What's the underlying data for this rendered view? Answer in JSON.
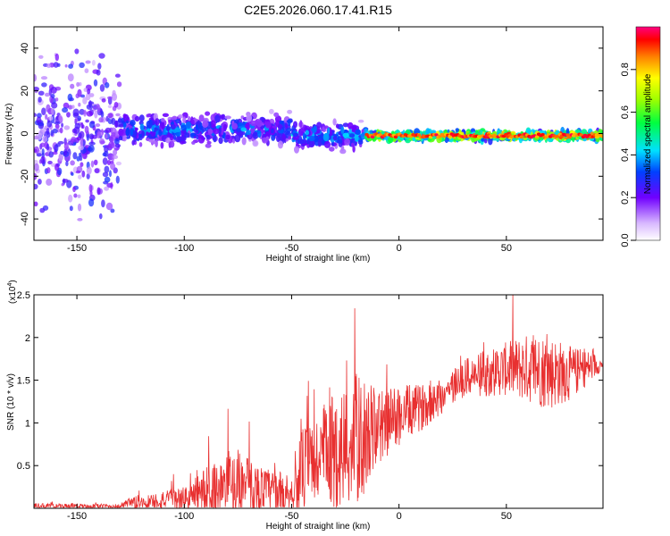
{
  "chart_data": [
    {
      "type": "heatmap",
      "title": "C2E5.2026.060.17.41.R15",
      "xlabel": "Height of straight line (km)",
      "ylabel": "Frequency (Hz)",
      "xlim": [
        -170,
        95
      ],
      "ylim": [
        -50,
        50
      ],
      "xticks": [
        -150,
        -100,
        -50,
        0,
        50
      ],
      "yticks": [
        -40,
        -20,
        0,
        20,
        40
      ],
      "colorbar": {
        "label": "Normalized spectral amplitude",
        "range": [
          0.0,
          1.0
        ],
        "ticks": [
          "0.0",
          "0.2",
          "0.4",
          "0.6",
          "0.8"
        ]
      },
      "segments": [
        {
          "x_start": -170,
          "x_end": -130,
          "center_hz": 0,
          "spread_hz": 48,
          "amplitude": 0.2
        },
        {
          "x_start": -130,
          "x_end": -50,
          "center_hz": 2,
          "spread_hz": 10,
          "amplitude": 0.35
        },
        {
          "x_start": -50,
          "x_end": -15,
          "center_hz": -1,
          "spread_hz": 8,
          "amplitude": 0.4
        },
        {
          "x_start": -15,
          "x_end": 95,
          "center_hz": -1,
          "spread_hz": 3,
          "amplitude": 0.85
        }
      ]
    },
    {
      "type": "line",
      "title": "",
      "xlabel": "Height of straight line (km)",
      "ylabel": "SNR (10 * v/v)",
      "multiplier": "(x10",
      "multiplier_exp": "4",
      "multiplier_close": ")",
      "xlim": [
        -170,
        95
      ],
      "ylim": [
        0,
        2.5
      ],
      "xticks": [
        -150,
        -100,
        -50,
        0,
        50
      ],
      "yticks": [
        0.5,
        1.0,
        1.5,
        2.0,
        2.5
      ],
      "color": "#e83030",
      "envelope": [
        {
          "x": -170,
          "base": 0.02,
          "amp": 0.04
        },
        {
          "x": -130,
          "base": 0.02,
          "amp": 0.03
        },
        {
          "x": -125,
          "base": 0.05,
          "amp": 0.08
        },
        {
          "x": -100,
          "base": 0.1,
          "amp": 0.15
        },
        {
          "x": -90,
          "base": 0.15,
          "amp": 0.35
        },
        {
          "x": -75,
          "base": 0.25,
          "amp": 0.45
        },
        {
          "x": -65,
          "base": 0.2,
          "amp": 0.3
        },
        {
          "x": -50,
          "base": 0.15,
          "amp": 0.25
        },
        {
          "x": -45,
          "base": 0.4,
          "amp": 0.55
        },
        {
          "x": -35,
          "base": 0.55,
          "amp": 0.7
        },
        {
          "x": -20,
          "base": 0.7,
          "amp": 0.9
        },
        {
          "x": -10,
          "base": 0.9,
          "amp": 0.5
        },
        {
          "x": 0,
          "base": 1.05,
          "amp": 0.4
        },
        {
          "x": 10,
          "base": 1.15,
          "amp": 0.3
        },
        {
          "x": 20,
          "base": 1.3,
          "amp": 0.25
        },
        {
          "x": 30,
          "base": 1.5,
          "amp": 0.25
        },
        {
          "x": 40,
          "base": 1.55,
          "amp": 0.3
        },
        {
          "x": 50,
          "base": 1.6,
          "amp": 0.35
        },
        {
          "x": 60,
          "base": 1.6,
          "amp": 0.45
        },
        {
          "x": 70,
          "base": 1.55,
          "amp": 0.5
        },
        {
          "x": 80,
          "base": 1.55,
          "amp": 0.35
        },
        {
          "x": 90,
          "base": 1.65,
          "amp": 0.2
        },
        {
          "x": 95,
          "base": 1.68,
          "amp": 0.05
        }
      ]
    }
  ]
}
